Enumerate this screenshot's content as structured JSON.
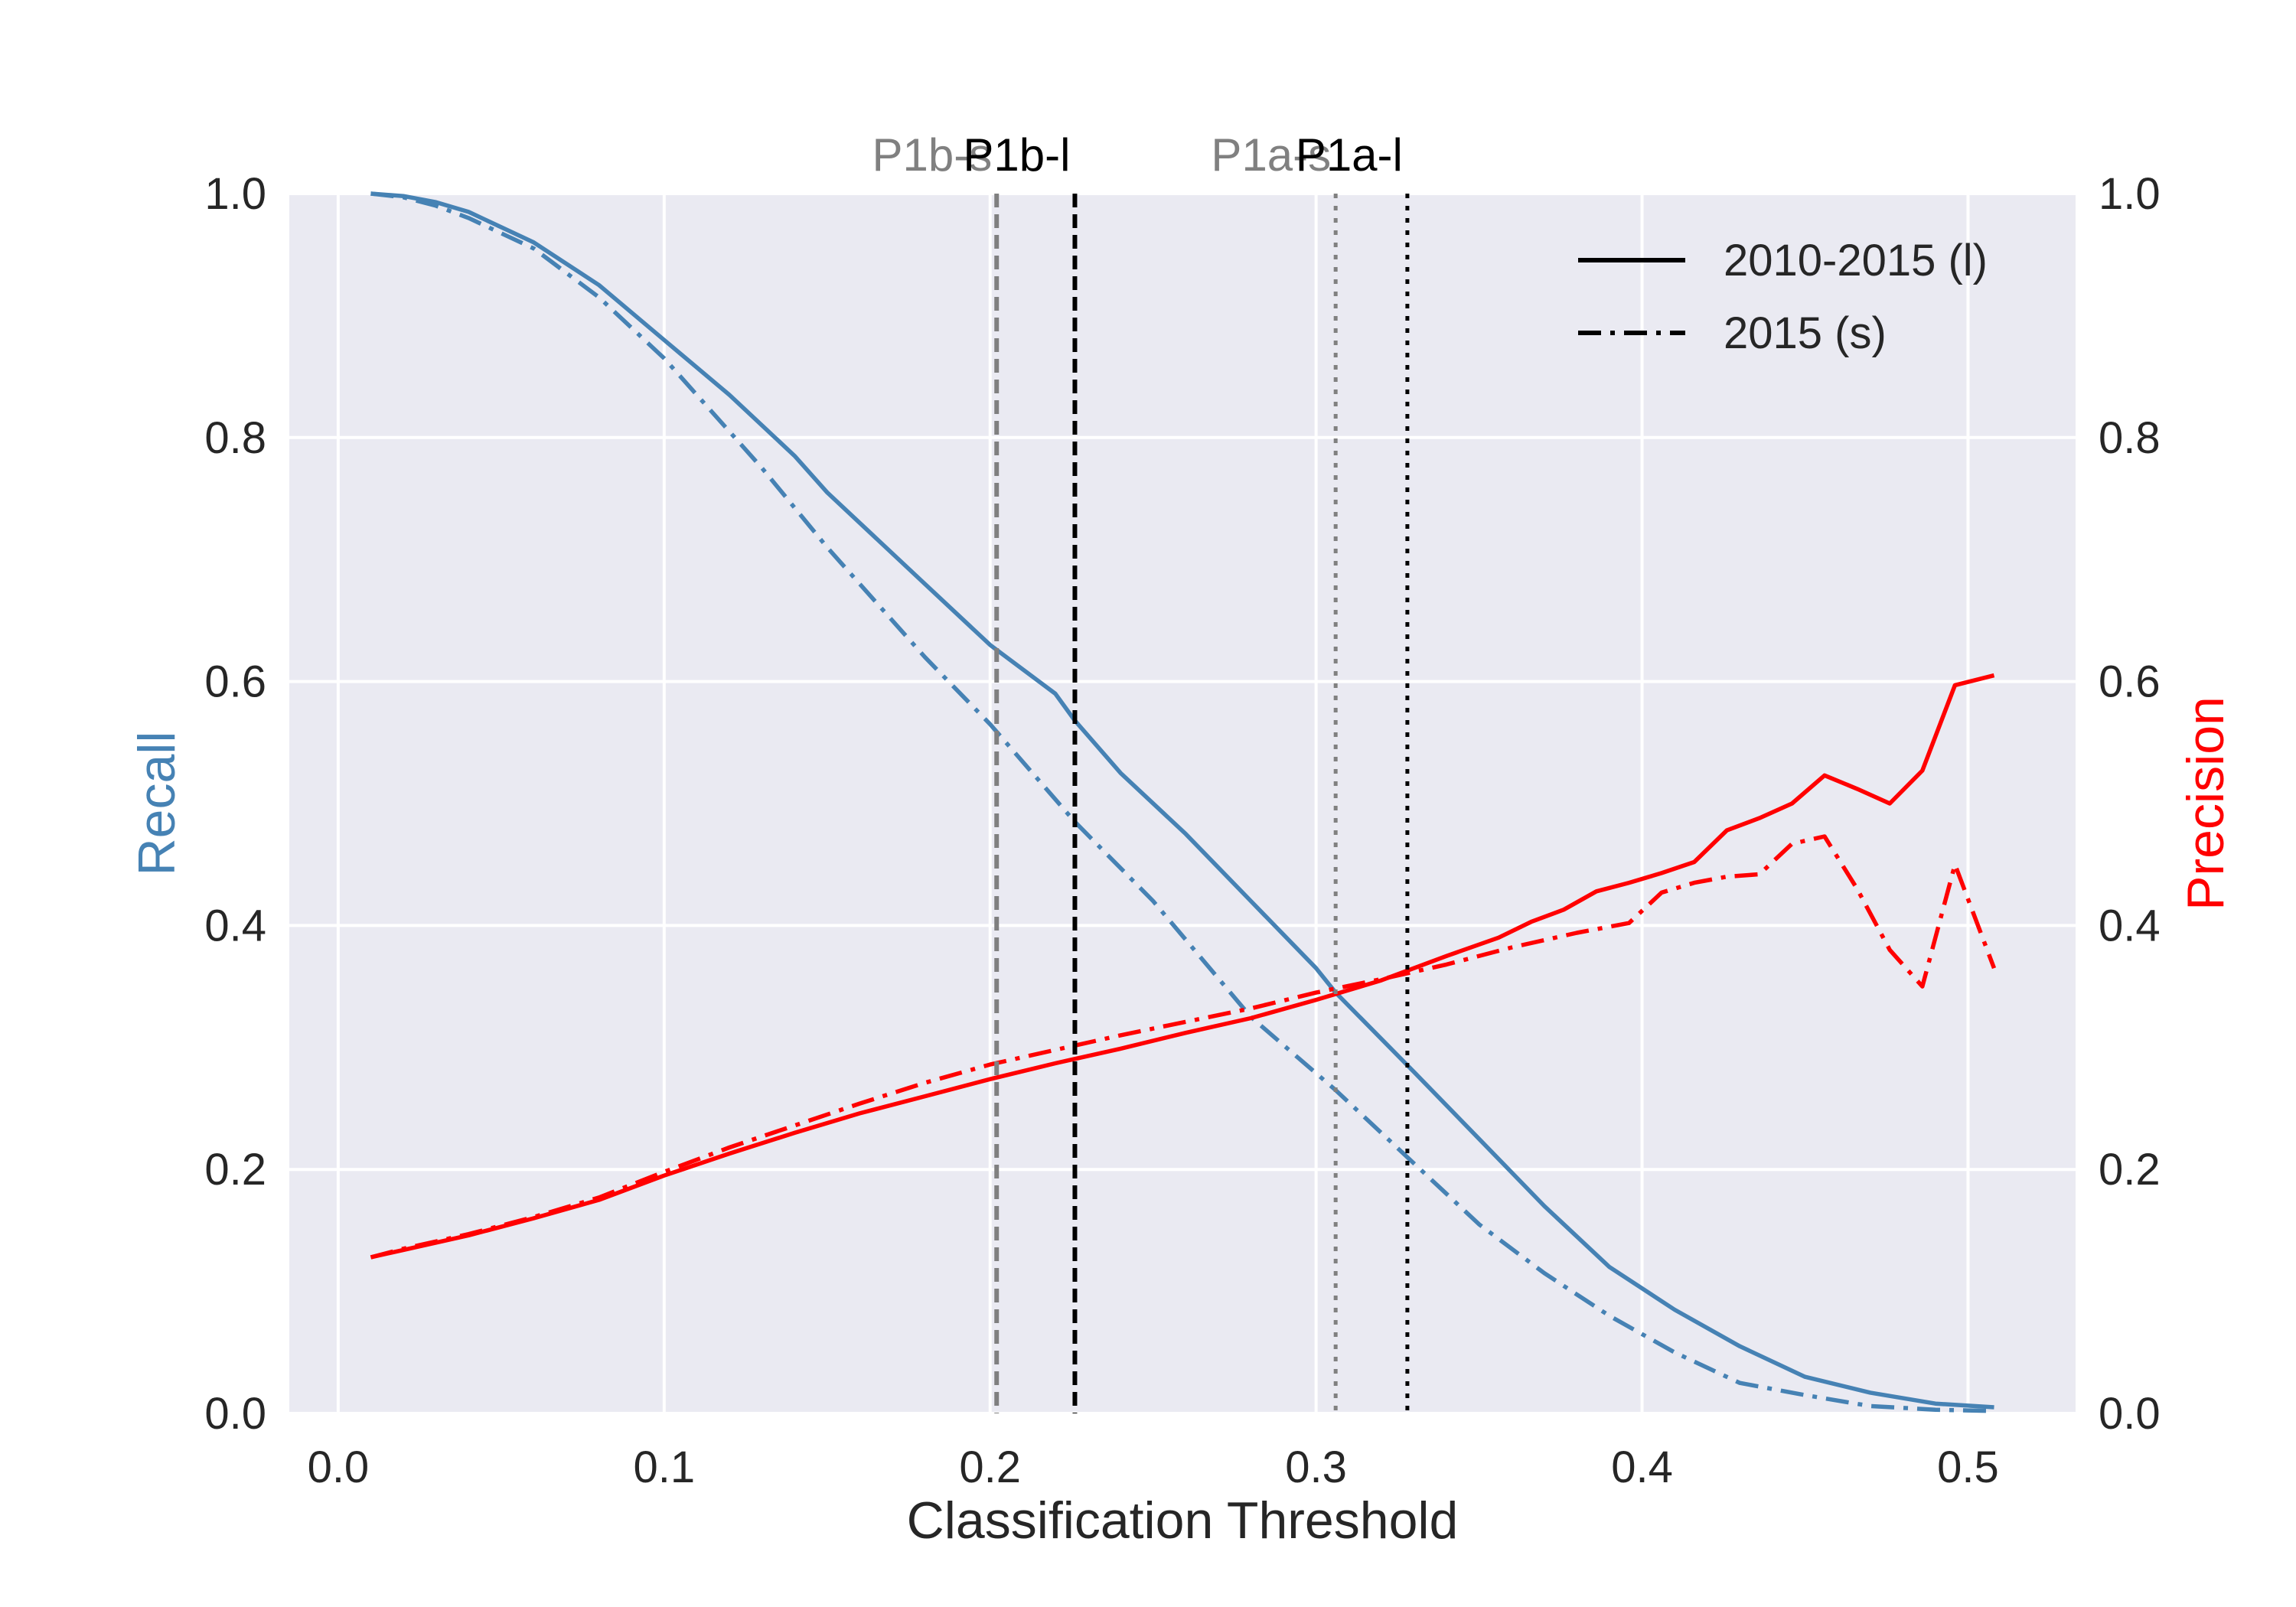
{
  "chart_data": {
    "type": "line",
    "xlabel": "Classification Threshold",
    "ylabel_left": "Recall",
    "ylabel_right": "Precision",
    "xlim": [
      -0.015,
      0.533
    ],
    "ylim": [
      0.0,
      1.0
    ],
    "xticks": [
      "0.0",
      "0.1",
      "0.2",
      "0.3",
      "0.4",
      "0.5"
    ],
    "yticks": [
      "0.0",
      "0.2",
      "0.4",
      "0.6",
      "0.8",
      "1.0"
    ],
    "grid": true,
    "legend_position": "top-right",
    "legend": [
      {
        "label": "2010-2015 (l)",
        "style": "solid"
      },
      {
        "label": "2015 (s)",
        "style": "dashdot"
      }
    ],
    "vlines": [
      {
        "label": "P1b-s",
        "x": 0.202,
        "color": "#808080",
        "style": "dashed"
      },
      {
        "label": "P1b-l",
        "x": 0.226,
        "color": "#000000",
        "style": "dashed"
      },
      {
        "label": "P1a-s",
        "x": 0.306,
        "color": "#808080",
        "style": "dotted"
      },
      {
        "label": "P1a-l",
        "x": 0.328,
        "color": "#000000",
        "style": "dotted"
      }
    ],
    "colors": {
      "recall": "#4682B4",
      "precision": "#FF0000"
    },
    "series": [
      {
        "name": "2010-2015 (l)",
        "metric": "Recall",
        "axis": "left",
        "color": "#4682B4",
        "style": "solid",
        "x": [
          0.01,
          0.02,
          0.03,
          0.04,
          0.06,
          0.08,
          0.1,
          0.12,
          0.14,
          0.15,
          0.18,
          0.2,
          0.22,
          0.226,
          0.24,
          0.26,
          0.28,
          0.3,
          0.306,
          0.33,
          0.35,
          0.37,
          0.39,
          0.41,
          0.43,
          0.45,
          0.47,
          0.49,
          0.508
        ],
        "y": [
          1.0,
          0.998,
          0.993,
          0.985,
          0.96,
          0.925,
          0.88,
          0.835,
          0.785,
          0.755,
          0.68,
          0.63,
          0.59,
          0.568,
          0.525,
          0.475,
          0.42,
          0.365,
          0.345,
          0.28,
          0.225,
          0.17,
          0.12,
          0.085,
          0.055,
          0.03,
          0.017,
          0.008,
          0.005
        ]
      },
      {
        "name": "2015 (s)",
        "metric": "Recall",
        "axis": "left",
        "color": "#4682B4",
        "style": "dashdot",
        "x": [
          0.01,
          0.02,
          0.03,
          0.04,
          0.06,
          0.08,
          0.1,
          0.12,
          0.13,
          0.15,
          0.18,
          0.2,
          0.226,
          0.25,
          0.28,
          0.306,
          0.33,
          0.35,
          0.37,
          0.39,
          0.41,
          0.43,
          0.45,
          0.47,
          0.49,
          0.508
        ],
        "y": [
          1.0,
          0.997,
          0.99,
          0.98,
          0.955,
          0.915,
          0.865,
          0.805,
          0.775,
          0.71,
          0.62,
          0.565,
          0.485,
          0.42,
          0.325,
          0.265,
          0.205,
          0.155,
          0.115,
          0.08,
          0.05,
          0.025,
          0.015,
          0.006,
          0.003,
          0.002
        ]
      },
      {
        "name": "2010-2015 (l)",
        "metric": "Precision",
        "axis": "right",
        "color": "#FF0000",
        "style": "solid",
        "x": [
          0.01,
          0.02,
          0.04,
          0.06,
          0.08,
          0.1,
          0.12,
          0.14,
          0.16,
          0.18,
          0.2,
          0.22,
          0.24,
          0.26,
          0.28,
          0.3,
          0.31,
          0.32,
          0.34,
          0.356,
          0.366,
          0.376,
          0.386,
          0.396,
          0.406,
          0.416,
          0.426,
          0.436,
          0.446,
          0.456,
          0.466,
          0.476,
          0.486,
          0.496,
          0.508
        ],
        "y": [
          0.128,
          0.134,
          0.146,
          0.16,
          0.175,
          0.195,
          0.213,
          0.23,
          0.246,
          0.26,
          0.274,
          0.287,
          0.299,
          0.312,
          0.324,
          0.339,
          0.347,
          0.355,
          0.375,
          0.39,
          0.403,
          0.413,
          0.428,
          0.435,
          0.443,
          0.452,
          0.478,
          0.488,
          0.5,
          0.523,
          0.512,
          0.5,
          0.527,
          0.597,
          0.605
        ]
      },
      {
        "name": "2015 (s)",
        "metric": "Precision",
        "axis": "right",
        "color": "#FF0000",
        "style": "dashdot",
        "x": [
          0.01,
          0.02,
          0.04,
          0.06,
          0.08,
          0.1,
          0.12,
          0.14,
          0.16,
          0.18,
          0.2,
          0.22,
          0.24,
          0.26,
          0.28,
          0.3,
          0.32,
          0.34,
          0.36,
          0.38,
          0.396,
          0.406,
          0.416,
          0.426,
          0.436,
          0.446,
          0.456,
          0.466,
          0.476,
          0.486,
          0.496,
          0.508
        ],
        "y": [
          0.128,
          0.135,
          0.147,
          0.161,
          0.177,
          0.198,
          0.218,
          0.236,
          0.254,
          0.271,
          0.286,
          0.298,
          0.31,
          0.321,
          0.332,
          0.345,
          0.356,
          0.368,
          0.382,
          0.394,
          0.402,
          0.427,
          0.435,
          0.44,
          0.442,
          0.467,
          0.473,
          0.43,
          0.38,
          0.35,
          0.45,
          0.365
        ]
      }
    ]
  }
}
